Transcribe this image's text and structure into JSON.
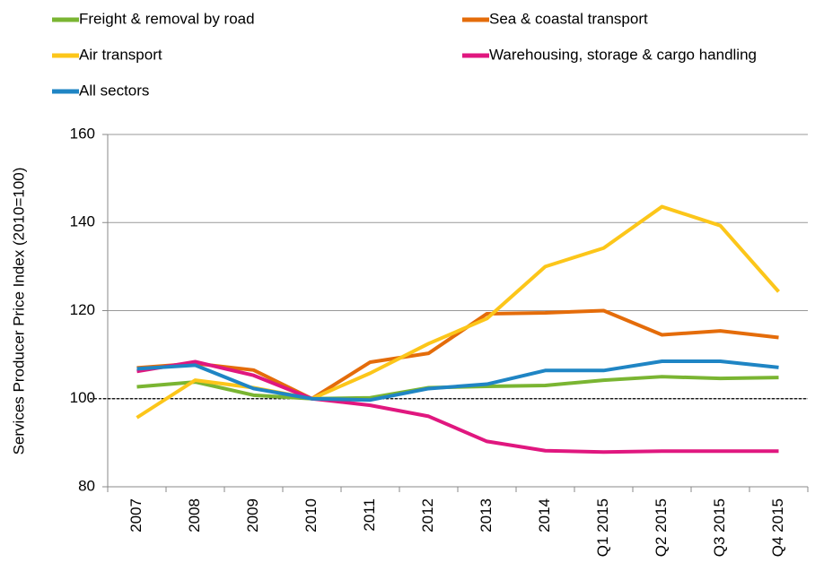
{
  "chart_data": {
    "type": "line",
    "y_label": "Services Producer Price Index (2010=100)",
    "categories": [
      "2007",
      "2008",
      "2009",
      "2010",
      "2011",
      "2012",
      "2013",
      "2014",
      "Q1 2015",
      "Q2 2015",
      "Q3 2015",
      "Q4 2015"
    ],
    "series": [
      {
        "name": "Freight & removal by road",
        "color": "#7ab532",
        "values": [
          102.7,
          103.8,
          100.8,
          100,
          100.2,
          102.5,
          102.8,
          103,
          104.2,
          105,
          104.6,
          104.8
        ]
      },
      {
        "name": "Sea & coastal transport",
        "color": "#e46c0a",
        "values": [
          107,
          108,
          106.5,
          100,
          108.3,
          110.3,
          119.3,
          119.5,
          120,
          114.5,
          115.4,
          113.9
        ]
      },
      {
        "name": "Air transport",
        "color": "#fcc61a",
        "values": [
          95.7,
          104.2,
          102.5,
          100,
          105.8,
          112.5,
          118.2,
          130,
          134.2,
          143.6,
          139.3,
          124.3
        ]
      },
      {
        "name": "Warehousing, storage & cargo handling",
        "color": "#e0177f",
        "values": [
          106.2,
          108.4,
          105.3,
          100,
          98.5,
          96,
          90.3,
          88.2,
          87.9,
          88.1,
          88.1,
          88.1
        ]
      },
      {
        "name": "All sectors",
        "color": "#1f85c4",
        "values": [
          106.8,
          107.6,
          102.3,
          100,
          99.7,
          102.3,
          103.3,
          106.4,
          106.4,
          108.5,
          108.5,
          107.1
        ]
      }
    ],
    "reference_line": 100,
    "ylim": [
      80,
      160
    ],
    "yticks": [
      80,
      100,
      120,
      140,
      160
    ],
    "grid": true
  }
}
